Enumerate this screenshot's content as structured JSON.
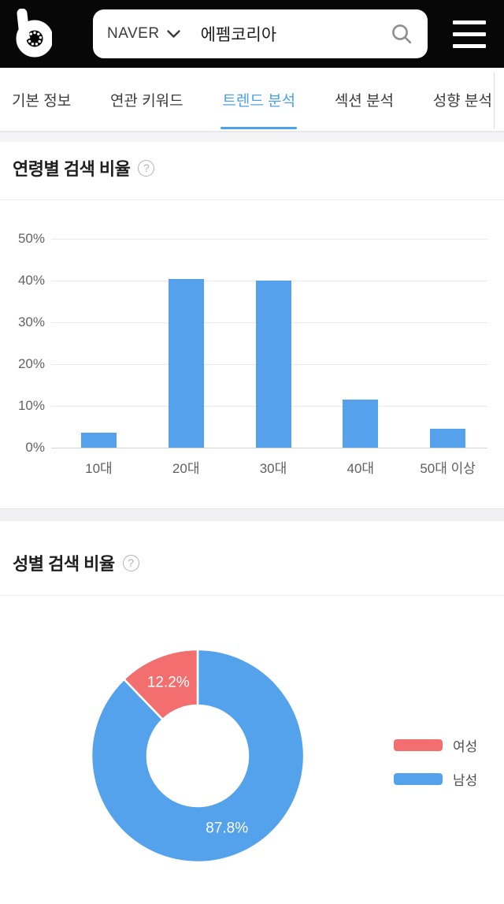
{
  "header": {
    "logo_name": "blackkiwi-logo",
    "search": {
      "engine": "NAVER",
      "query": "에펨코리아"
    }
  },
  "icons": {
    "help_glyph": "?"
  },
  "tabs": [
    {
      "label": "기본 정보",
      "active": false
    },
    {
      "label": "연관 키워드",
      "active": false
    },
    {
      "label": "트렌드 분석",
      "active": true
    },
    {
      "label": "섹션 분석",
      "active": false
    },
    {
      "label": "성향 분석",
      "active": false
    }
  ],
  "sections": {
    "age": {
      "title": "연령별 검색 비율"
    },
    "gender": {
      "title": "성별 검색 비율"
    }
  },
  "colors": {
    "accent_blue": "#4ba2ea",
    "bar_blue": "#55a1eb",
    "donut_blue": "#54a1ec",
    "donut_red": "#f36e6e",
    "header_bg": "#070707"
  },
  "chart_data": [
    {
      "type": "bar",
      "title": "연령별 검색 비율",
      "categories": [
        "10대",
        "20대",
        "30대",
        "40대",
        "50대 이상"
      ],
      "values": [
        3.6,
        40.4,
        40.0,
        11.6,
        4.6
      ],
      "unit": "%",
      "xlabel": "",
      "ylabel": "",
      "ylim": [
        0,
        50
      ],
      "yticks": [
        "0%",
        "10%",
        "20%",
        "30%",
        "40%",
        "50%"
      ],
      "grid": true,
      "bar_color": "#55a1eb"
    },
    {
      "type": "pie",
      "subtype": "donut",
      "title": "성별 검색 비율",
      "slices": [
        {
          "label": "여성",
          "value": 12.2,
          "display": "12.2%",
          "color": "#f36e6e"
        },
        {
          "label": "남성",
          "value": 87.8,
          "display": "87.8%",
          "color": "#54a1ec"
        }
      ],
      "start_angle_deg": 0,
      "direction": "clockwise_blue_first",
      "legend_position": "right"
    }
  ]
}
